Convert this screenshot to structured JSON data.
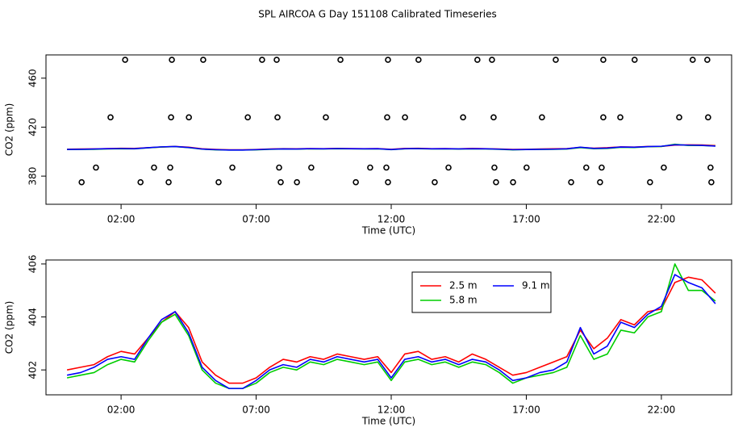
{
  "title": "SPL AIRCOA G  Day 151108  Calibrated Timeseries",
  "chart_data": [
    {
      "type": "line",
      "xlabel": "Time (UTC)",
      "ylabel": "CO2 (ppm)",
      "xlim": [
        -0.78,
        24.6
      ],
      "ylim": [
        357,
        479
      ],
      "xticks": [
        {
          "value": 2,
          "label": "02:00"
        },
        {
          "value": 7,
          "label": "07:00"
        },
        {
          "value": 12,
          "label": "12:00"
        },
        {
          "value": 17,
          "label": "17:00"
        },
        {
          "value": 22,
          "label": "22:00"
        }
      ],
      "yticks": [
        380,
        420,
        460
      ],
      "x": [
        0,
        0.5,
        1,
        1.5,
        2,
        2.5,
        3,
        3.5,
        4,
        4.5,
        5,
        5.5,
        6,
        6.5,
        7,
        7.5,
        8,
        8.5,
        9,
        9.5,
        10,
        10.5,
        11,
        11.5,
        12,
        12.5,
        13,
        13.5,
        14,
        14.5,
        15,
        15.5,
        16,
        16.5,
        17,
        17.5,
        18,
        18.5,
        19,
        19.5,
        20,
        20.5,
        21,
        21.5,
        22,
        22.5,
        23,
        23.5,
        24
      ],
      "series": [
        {
          "color": "#ff0000",
          "values": [
            402.0,
            402.1,
            402.2,
            402.5,
            402.7,
            402.6,
            403.2,
            403.8,
            404.2,
            403.6,
            402.3,
            401.8,
            401.5,
            401.5,
            401.7,
            402.1,
            402.4,
            402.3,
            402.5,
            402.4,
            402.6,
            402.5,
            402.4,
            402.5,
            401.9,
            402.6,
            402.7,
            402.4,
            402.5,
            402.3,
            402.6,
            402.4,
            402.1,
            401.8,
            401.9,
            402.1,
            402.3,
            402.5,
            403.5,
            402.8,
            403.2,
            403.9,
            403.7,
            404.2,
            404.3,
            405.3,
            405.5,
            405.4,
            404.9
          ]
        },
        {
          "color": "#00cd00",
          "values": [
            401.7,
            401.8,
            401.9,
            402.2,
            402.4,
            402.3,
            403.1,
            403.8,
            404.1,
            403.3,
            402.0,
            401.5,
            401.3,
            401.3,
            401.5,
            401.9,
            402.1,
            402.0,
            402.3,
            402.2,
            402.4,
            402.3,
            402.2,
            402.3,
            401.6,
            402.3,
            402.4,
            402.2,
            402.3,
            402.1,
            402.3,
            402.2,
            401.9,
            401.5,
            401.7,
            401.8,
            401.9,
            402.1,
            403.3,
            402.4,
            402.6,
            403.5,
            403.4,
            404.0,
            404.2,
            406.0,
            405.0,
            405.0,
            404.6
          ]
        },
        {
          "color": "#0000ff",
          "values": [
            401.8,
            401.9,
            402.1,
            402.4,
            402.5,
            402.4,
            403.2,
            403.9,
            404.2,
            403.4,
            402.1,
            401.6,
            401.3,
            401.3,
            401.6,
            402.0,
            402.2,
            402.1,
            402.4,
            402.3,
            402.5,
            402.4,
            402.3,
            402.4,
            401.7,
            402.4,
            402.5,
            402.3,
            402.4,
            402.2,
            402.4,
            402.3,
            402.0,
            401.6,
            401.7,
            401.9,
            402.0,
            402.3,
            403.6,
            402.6,
            402.9,
            403.8,
            403.6,
            404.1,
            404.4,
            405.6,
            405.3,
            405.1,
            404.5
          ]
        }
      ],
      "points": {
        "color": "#000000",
        "x": [
          2.15,
          3.88,
          5.04,
          7.22,
          7.76,
          10.12,
          11.88,
          13.01,
          15.19,
          15.73,
          18.09,
          19.85,
          21.01,
          23.16,
          23.7,
          1.61,
          3.85,
          4.51,
          6.69,
          7.79,
          9.58,
          11.85,
          12.51,
          14.66,
          15.79,
          17.58,
          19.85,
          20.48,
          22.66,
          23.73,
          1.07,
          3.22,
          3.82,
          6.12,
          7.85,
          9.04,
          11.22,
          11.82,
          14.12,
          15.82,
          17.01,
          19.22,
          19.79,
          22.09,
          23.82,
          0.54,
          2.72,
          3.76,
          5.61,
          7.91,
          8.51,
          10.69,
          11.88,
          13.61,
          15.88,
          16.51,
          18.66,
          19.73,
          21.58,
          23.85
        ],
        "values": [
          475,
          475,
          475,
          475,
          475,
          475,
          475,
          475,
          475,
          475,
          475,
          475,
          475,
          475,
          475,
          428,
          428,
          428,
          428,
          428,
          428,
          428,
          428,
          428,
          428,
          428,
          428,
          428,
          428,
          428,
          387,
          387,
          387,
          387,
          387,
          387,
          387,
          387,
          387,
          387,
          387,
          387,
          387,
          387,
          387,
          375,
          375,
          375,
          375,
          375,
          375,
          375,
          375,
          375,
          375,
          375,
          375,
          375,
          375,
          375
        ]
      }
    },
    {
      "type": "line",
      "xlabel": "Time (UTC)",
      "ylabel": "CO2 (ppm)",
      "xlim": [
        -0.78,
        24.6
      ],
      "ylim": [
        401.06,
        406.15
      ],
      "xticks": [
        {
          "value": 2,
          "label": "02:00"
        },
        {
          "value": 7,
          "label": "07:00"
        },
        {
          "value": 12,
          "label": "12:00"
        },
        {
          "value": 17,
          "label": "17:00"
        },
        {
          "value": 22,
          "label": "22:00"
        }
      ],
      "yticks": [
        402,
        404,
        406
      ],
      "legend": "top",
      "x": [
        0,
        0.5,
        1,
        1.5,
        2,
        2.5,
        3,
        3.5,
        4,
        4.5,
        5,
        5.5,
        6,
        6.5,
        7,
        7.5,
        8,
        8.5,
        9,
        9.5,
        10,
        10.5,
        11,
        11.5,
        12,
        12.5,
        13,
        13.5,
        14,
        14.5,
        15,
        15.5,
        16,
        16.5,
        17,
        17.5,
        18,
        18.5,
        19,
        19.5,
        20,
        20.5,
        21,
        21.5,
        22,
        22.5,
        23,
        23.5,
        24
      ],
      "series": [
        {
          "name": "2.5 m",
          "color": "#ff0000",
          "values": [
            402.0,
            402.1,
            402.2,
            402.5,
            402.7,
            402.6,
            403.2,
            403.8,
            404.2,
            403.6,
            402.3,
            401.8,
            401.5,
            401.5,
            401.7,
            402.1,
            402.4,
            402.3,
            402.5,
            402.4,
            402.6,
            402.5,
            402.4,
            402.5,
            401.9,
            402.6,
            402.7,
            402.4,
            402.5,
            402.3,
            402.6,
            402.4,
            402.1,
            401.8,
            401.9,
            402.1,
            402.3,
            402.5,
            403.5,
            402.8,
            403.2,
            403.9,
            403.7,
            404.2,
            404.3,
            405.3,
            405.5,
            405.4,
            404.9
          ]
        },
        {
          "name": "5.8 m",
          "color": "#00cd00",
          "values": [
            401.7,
            401.8,
            401.9,
            402.2,
            402.4,
            402.3,
            403.1,
            403.8,
            404.1,
            403.3,
            402.0,
            401.5,
            401.3,
            401.3,
            401.5,
            401.9,
            402.1,
            402.0,
            402.3,
            402.2,
            402.4,
            402.3,
            402.2,
            402.3,
            401.6,
            402.3,
            402.4,
            402.2,
            402.3,
            402.1,
            402.3,
            402.2,
            401.9,
            401.5,
            401.7,
            401.8,
            401.9,
            402.1,
            403.3,
            402.4,
            402.6,
            403.5,
            403.4,
            404.0,
            404.2,
            406.0,
            405.0,
            405.0,
            404.6
          ]
        },
        {
          "name": "9.1 m",
          "color": "#0000ff",
          "values": [
            401.8,
            401.9,
            402.1,
            402.4,
            402.5,
            402.4,
            403.2,
            403.9,
            404.2,
            403.4,
            402.1,
            401.6,
            401.3,
            401.3,
            401.6,
            402.0,
            402.2,
            402.1,
            402.4,
            402.3,
            402.5,
            402.4,
            402.3,
            402.4,
            401.7,
            402.4,
            402.5,
            402.3,
            402.4,
            402.2,
            402.4,
            402.3,
            402.0,
            401.6,
            401.7,
            401.9,
            402.0,
            402.3,
            403.6,
            402.6,
            402.9,
            403.8,
            403.6,
            404.1,
            404.4,
            405.6,
            405.3,
            405.1,
            404.5
          ]
        }
      ]
    }
  ]
}
